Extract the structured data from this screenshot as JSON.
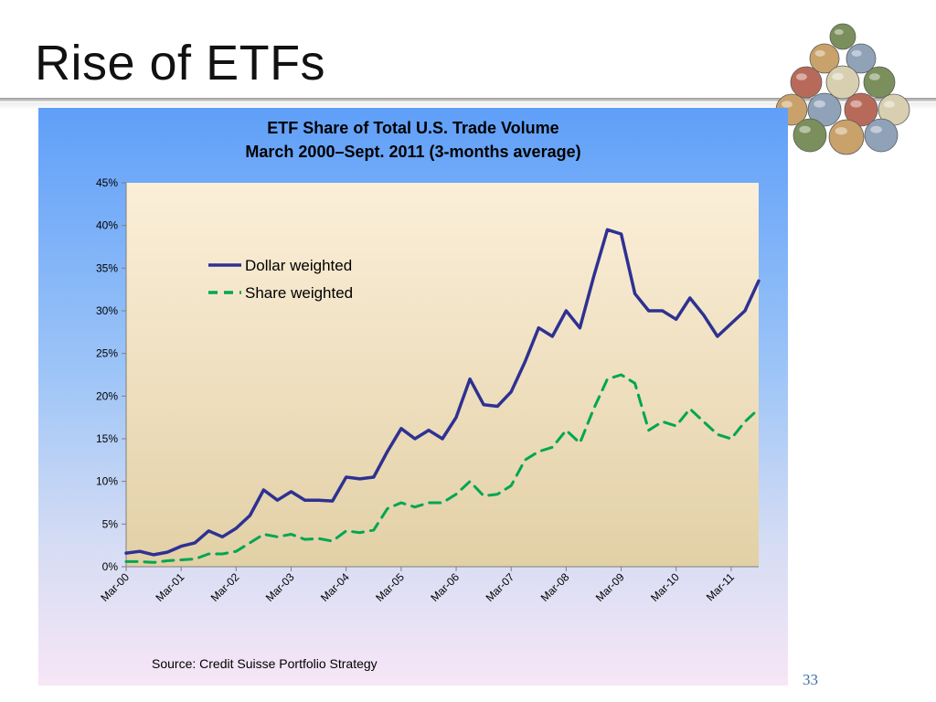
{
  "slide": {
    "title": "Rise of ETFs",
    "page_number": "33"
  },
  "decoration": {
    "icon": "globe-money-pyramid-icon",
    "colors": [
      "#7a8f5c",
      "#c9a16a",
      "#8fa2b8",
      "#b86a5a",
      "#d8cfb0"
    ]
  },
  "chart": {
    "source": "Source: Credit Suisse Portfolio Strategy",
    "colors": {
      "dollar": "#2e3192",
      "share": "#00a651",
      "plot_bg_top": "#fbefd9",
      "plot_bg_bottom": "#e2d0a6"
    }
  },
  "chart_data": {
    "type": "line",
    "title": "ETF Share of Total U.S. Trade Volume",
    "subtitle": "March 2000–Sept. 2011 (3-months average)",
    "xlabel": "",
    "ylabel": "",
    "x_tick_labels": [
      "Mar-00",
      "Mar-01",
      "Mar-02",
      "Mar-03",
      "Mar-04",
      "Mar-05",
      "Mar-06",
      "Mar-07",
      "Mar-08",
      "Mar-09",
      "Mar-10",
      "Mar-11"
    ],
    "y_tick_labels": [
      "0%",
      "5%",
      "10%",
      "15%",
      "20%",
      "25%",
      "30%",
      "35%",
      "40%",
      "45%"
    ],
    "ylim": [
      0,
      45
    ],
    "xlim": [
      "2000-03",
      "2011-09"
    ],
    "legend_placement": "upper-left",
    "grid": false,
    "series": [
      {
        "name": "Dollar weighted",
        "style": "solid",
        "x": [
          "2000-03",
          "2000-06",
          "2000-09",
          "2000-12",
          "2001-03",
          "2001-06",
          "2001-09",
          "2001-12",
          "2002-03",
          "2002-06",
          "2002-09",
          "2002-12",
          "2003-03",
          "2003-06",
          "2003-09",
          "2003-12",
          "2004-03",
          "2004-06",
          "2004-09",
          "2004-12",
          "2005-03",
          "2005-06",
          "2005-09",
          "2005-12",
          "2006-03",
          "2006-06",
          "2006-09",
          "2006-12",
          "2007-03",
          "2007-06",
          "2007-09",
          "2007-12",
          "2008-03",
          "2008-06",
          "2008-09",
          "2008-12",
          "2009-03",
          "2009-06",
          "2009-09",
          "2009-12",
          "2010-03",
          "2010-06",
          "2010-09",
          "2010-12",
          "2011-03",
          "2011-06",
          "2011-09"
        ],
        "values": [
          1.6,
          1.8,
          1.4,
          1.7,
          2.4,
          2.8,
          4.2,
          3.5,
          4.5,
          6.0,
          9.0,
          7.8,
          8.8,
          7.8,
          7.8,
          7.7,
          10.5,
          10.3,
          10.5,
          13.5,
          16.2,
          15.0,
          16.0,
          15.0,
          17.5,
          22.0,
          19.0,
          18.8,
          20.5,
          24.0,
          28.0,
          27.0,
          30.0,
          28.0,
          34.0,
          39.5,
          39.0,
          32.0,
          30.0,
          30.0,
          29.0,
          31.5,
          29.5,
          27.0,
          28.5,
          30.0,
          33.5
        ]
      },
      {
        "name": "Share weighted",
        "style": "dashed",
        "x": [
          "2000-03",
          "2000-06",
          "2000-09",
          "2000-12",
          "2001-03",
          "2001-06",
          "2001-09",
          "2001-12",
          "2002-03",
          "2002-06",
          "2002-09",
          "2002-12",
          "2003-03",
          "2003-06",
          "2003-09",
          "2003-12",
          "2004-03",
          "2004-06",
          "2004-09",
          "2004-12",
          "2005-03",
          "2005-06",
          "2005-09",
          "2005-12",
          "2006-03",
          "2006-06",
          "2006-09",
          "2006-12",
          "2007-03",
          "2007-06",
          "2007-09",
          "2007-12",
          "2008-03",
          "2008-06",
          "2008-09",
          "2008-12",
          "2009-03",
          "2009-06",
          "2009-09",
          "2009-12",
          "2010-03",
          "2010-06",
          "2010-09",
          "2010-12",
          "2011-03",
          "2011-06",
          "2011-09"
        ],
        "values": [
          0.6,
          0.6,
          0.5,
          0.7,
          0.8,
          0.9,
          1.5,
          1.5,
          1.8,
          2.8,
          3.8,
          3.5,
          3.8,
          3.2,
          3.3,
          3.0,
          4.2,
          4.0,
          4.3,
          6.8,
          7.5,
          7.0,
          7.5,
          7.5,
          8.5,
          10.0,
          8.3,
          8.5,
          9.5,
          12.5,
          13.5,
          14.0,
          16.0,
          14.5,
          18.5,
          22.0,
          22.5,
          21.5,
          16.0,
          17.0,
          16.5,
          18.5,
          17.0,
          15.5,
          15.0,
          17.0,
          18.5
        ]
      }
    ]
  }
}
